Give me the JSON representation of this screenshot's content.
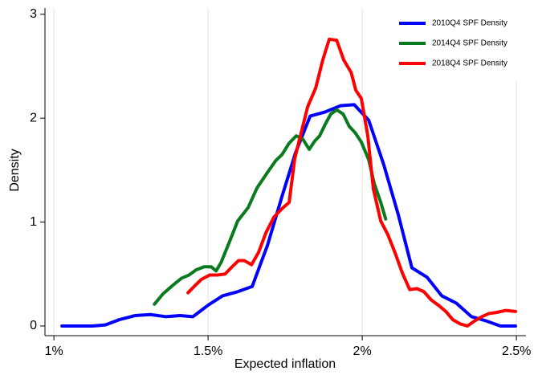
{
  "chart_data": {
    "type": "line",
    "x_label": "Expected inflation",
    "y_label": "Density",
    "xlim": [
      0.971,
      2.531
    ],
    "ylim": [
      -0.093,
      3.06
    ],
    "xticks": [
      {
        "value": 1,
        "label": "1%"
      },
      {
        "value": 1.5,
        "label": "1.5%"
      },
      {
        "value": 2,
        "label": "2%"
      },
      {
        "value": 2.5,
        "label": "2.5%"
      }
    ],
    "yticks": [
      0,
      1,
      2,
      3
    ],
    "grid": "x",
    "legend": "top-right",
    "series": [
      {
        "name": "2010Q4 SPF Density",
        "color": "#0000ff",
        "x": [
          1.026,
          1.125,
          1.167,
          1.211,
          1.263,
          1.313,
          1.362,
          1.409,
          1.451,
          1.5,
          1.547,
          1.596,
          1.643,
          1.693,
          1.74,
          1.784,
          1.831,
          1.88,
          1.93,
          1.974,
          2.021,
          2.07,
          2.117,
          2.161,
          2.21,
          2.258,
          2.305,
          2.354,
          2.401,
          2.448,
          2.497
        ],
        "values": [
          0,
          0,
          0.01,
          0.06,
          0.1,
          0.11,
          0.09,
          0.1,
          0.09,
          0.2,
          0.29,
          0.33,
          0.38,
          0.78,
          1.25,
          1.67,
          2.02,
          2.06,
          2.12,
          2.13,
          1.98,
          1.55,
          1.07,
          0.56,
          0.47,
          0.29,
          0.22,
          0.09,
          0.05,
          0,
          0
        ]
      },
      {
        "name": "2014Q4 SPF Density",
        "color": "#0a7a1e",
        "x": [
          1.326,
          1.354,
          1.385,
          1.414,
          1.438,
          1.461,
          1.487,
          1.51,
          1.526,
          1.542,
          1.568,
          1.596,
          1.63,
          1.659,
          1.693,
          1.719,
          1.74,
          1.763,
          1.786,
          1.807,
          1.828,
          1.846,
          1.862,
          1.878,
          1.898,
          1.917,
          1.938,
          1.958,
          1.977,
          1.997,
          2.021,
          2.039,
          2.06,
          2.076
        ],
        "values": [
          0.21,
          0.31,
          0.39,
          0.46,
          0.49,
          0.54,
          0.57,
          0.57,
          0.53,
          0.61,
          0.8,
          1.01,
          1.14,
          1.33,
          1.48,
          1.59,
          1.65,
          1.76,
          1.83,
          1.8,
          1.7,
          1.78,
          1.83,
          1.93,
          2.04,
          2.08,
          2.04,
          1.92,
          1.86,
          1.77,
          1.6,
          1.37,
          1.19,
          1.03
        ]
      },
      {
        "name": "2018Q4 SPF Density",
        "color": "#ff0000",
        "x": [
          1.435,
          1.458,
          1.479,
          1.505,
          1.529,
          1.555,
          1.578,
          1.599,
          1.617,
          1.641,
          1.664,
          1.688,
          1.714,
          1.74,
          1.763,
          1.781,
          1.802,
          1.823,
          1.849,
          1.872,
          1.893,
          1.917,
          1.94,
          1.964,
          1.979,
          1.997,
          2.018,
          2.036,
          2.06,
          2.083,
          2.107,
          2.13,
          2.154,
          2.177,
          2.2,
          2.224,
          2.247,
          2.271,
          2.294,
          2.318,
          2.341,
          2.365,
          2.388,
          2.411,
          2.435,
          2.466,
          2.497
        ],
        "values": [
          0.32,
          0.39,
          0.45,
          0.49,
          0.49,
          0.5,
          0.57,
          0.63,
          0.63,
          0.59,
          0.71,
          0.9,
          1.05,
          1.13,
          1.19,
          1.61,
          1.86,
          2.11,
          2.29,
          2.56,
          2.76,
          2.75,
          2.56,
          2.44,
          2.27,
          2.19,
          1.83,
          1.32,
          1.01,
          0.88,
          0.7,
          0.51,
          0.35,
          0.36,
          0.33,
          0.25,
          0.2,
          0.14,
          0.06,
          0.02,
          0,
          0.05,
          0.09,
          0.12,
          0.13,
          0.15,
          0.14
        ]
      }
    ]
  }
}
